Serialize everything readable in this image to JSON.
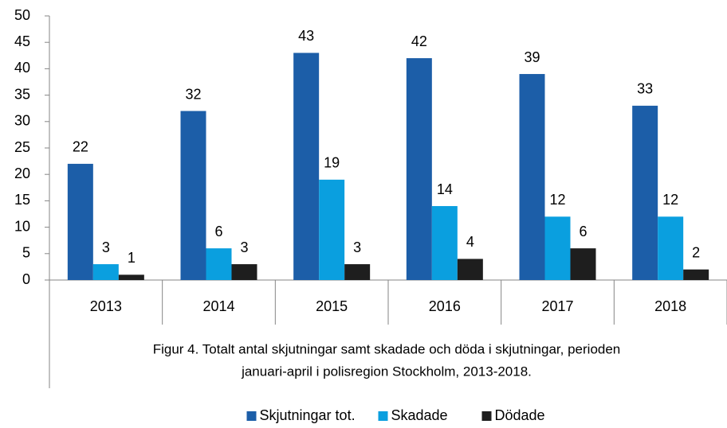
{
  "chart_data": {
    "type": "bar",
    "categories": [
      "2013",
      "2014",
      "2015",
      "2016",
      "2017",
      "2018"
    ],
    "series": [
      {
        "name": "Skjutningar tot.",
        "color": "#1c5ea8",
        "values": [
          22,
          32,
          43,
          42,
          39,
          33
        ]
      },
      {
        "name": "Skadade",
        "color": "#0a9fdf",
        "values": [
          3,
          6,
          19,
          14,
          12,
          12
        ]
      },
      {
        "name": "Dödade",
        "color": "#1e1e1e",
        "values": [
          1,
          3,
          3,
          4,
          6,
          2
        ]
      }
    ],
    "ylim": [
      0,
      50
    ],
    "yticks": [
      0,
      5,
      10,
      15,
      20,
      25,
      30,
      35,
      40,
      45,
      50
    ],
    "caption": [
      "Figur 4. Totalt antal skjutningar samt skadade och döda i skjutningar, perioden",
      "januari-april i polisregion Stockholm, 2013-2018."
    ],
    "legend": "bottom",
    "grid": false
  }
}
